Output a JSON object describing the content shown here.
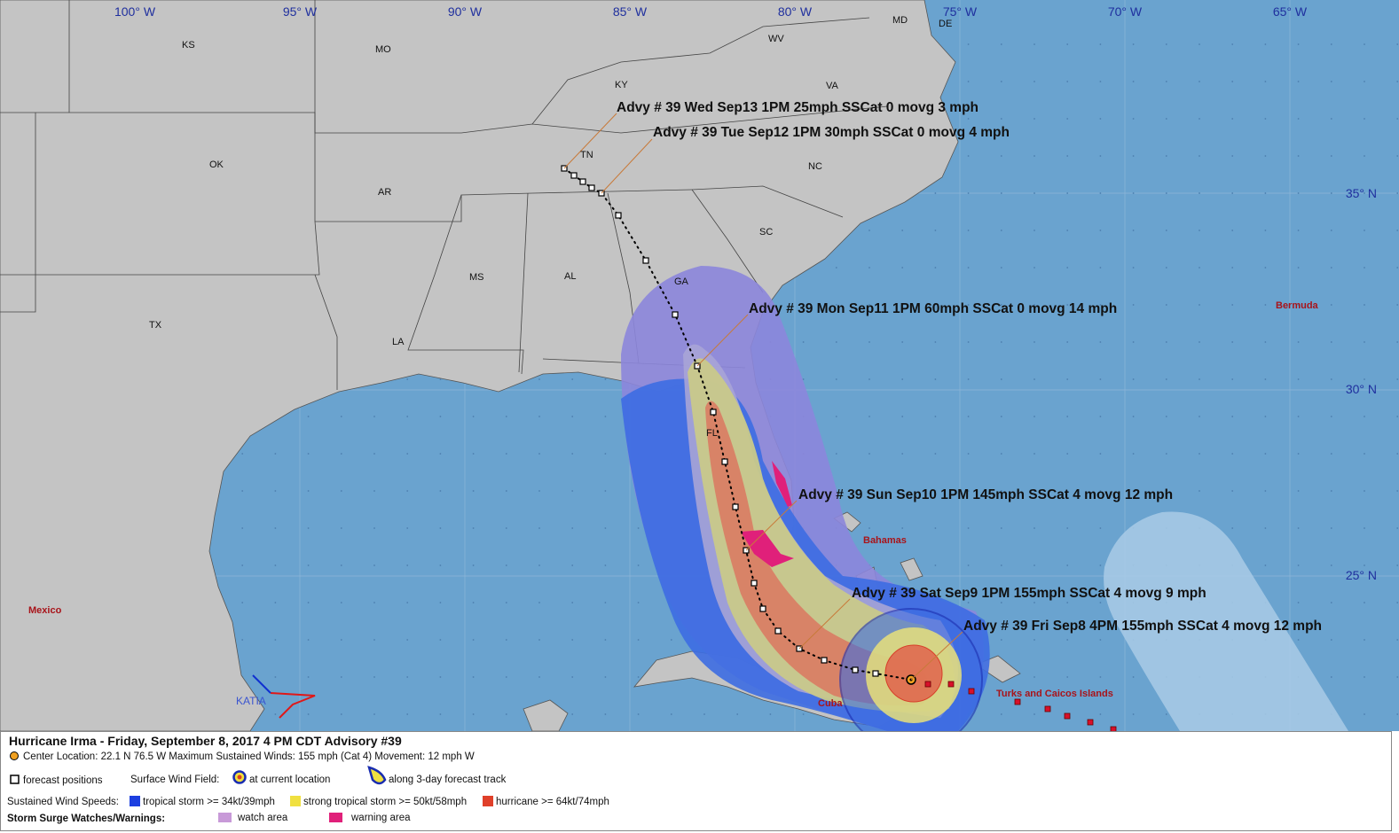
{
  "map": {
    "longitude_labels": [
      "100° W",
      "95° W",
      "90° W",
      "85° W",
      "80° W",
      "75° W",
      "70° W",
      "65° W"
    ],
    "latitude_labels": [
      "35° N",
      "30° N",
      "25° N"
    ],
    "state_labels": [
      "KS",
      "MO",
      "KY",
      "WV",
      "VA",
      "MD",
      "DE",
      "OK",
      "AR",
      "TN",
      "NC",
      "SC",
      "MS",
      "AL",
      "GA",
      "TX",
      "LA",
      "FL"
    ],
    "place_labels": [
      "Bermuda",
      "Mexico",
      "Bahamas",
      "Cuba",
      "Turks and Caicos Islands",
      "KATIA"
    ],
    "advisories": [
      "Advy # 39 Wed Sep13 1PM  25mph SSCat 0 movg 3 mph",
      "Advy # 39 Tue Sep12 1PM  30mph SSCat 0 movg 4 mph",
      "Advy # 39 Mon Sep11 1PM  60mph SSCat 0 movg 14 mph",
      "Advy # 39 Sun Sep10 1PM  145mph SSCat 4 movg 12 mph",
      "Advy # 39 Sat Sep9 1PM  155mph SSCat 4 movg 9 mph",
      "Advy # 39 Fri Sep8 4PM  155mph SSCat 4 movg 12 mph"
    ]
  },
  "legend": {
    "title": "Hurricane Irma  -  Friday, September 8, 2017  4 PM CDT  Advisory #39",
    "center": "Center Location: 22.1 N  76.5 W  Maximum Sustained Winds: 155 mph (Cat 4)  Movement: 12 mph W",
    "forecast_positions": "forecast positions",
    "surface_wind_field": "Surface Wind Field:",
    "at_current_location": "at current location",
    "along_track": "along 3-day forecast track",
    "sustained_wind_speeds": "Sustained Wind Speeds:",
    "tropical_storm": "tropical storm >= 34kt/39mph",
    "strong_tropical_storm": "strong tropical storm >= 50kt/58mph",
    "hurricane": "hurricane >= 64kt/74mph",
    "storm_surge": "Storm Surge Watches/Warnings:",
    "watch_area": "watch area",
    "warning_area": "warning area"
  }
}
